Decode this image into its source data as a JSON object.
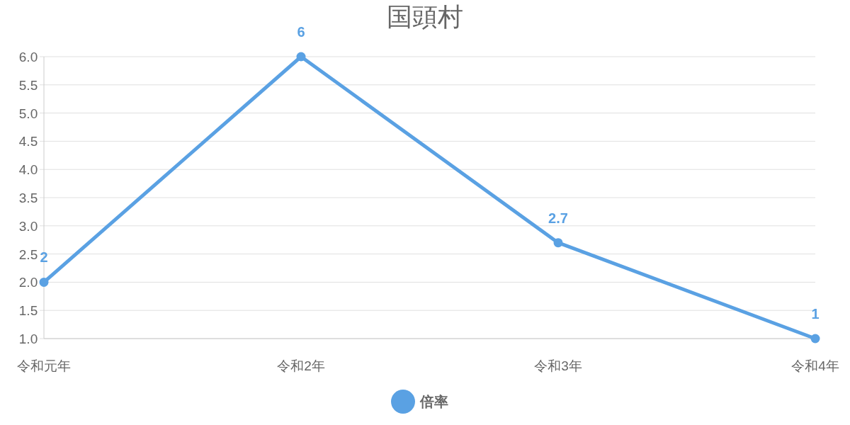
{
  "chart_data": {
    "type": "line",
    "title": "国頭村",
    "categories": [
      "令和元年",
      "令和2年",
      "令和3年",
      "令和4年"
    ],
    "series": [
      {
        "name": "倍率",
        "color": "#5aa1e3",
        "values": [
          2,
          6,
          2.7,
          1
        ]
      }
    ],
    "ylim": [
      1,
      6
    ],
    "yticks": [
      {
        "value": 1,
        "label": "1.0"
      },
      {
        "value": 1.5,
        "label": "1.5"
      },
      {
        "value": 2,
        "label": "2.0"
      },
      {
        "value": 2.5,
        "label": "2.5"
      },
      {
        "value": 3,
        "label": "3.0"
      },
      {
        "value": 3.5,
        "label": "3.5"
      },
      {
        "value": 4,
        "label": "4.0"
      },
      {
        "value": 4.5,
        "label": "4.5"
      },
      {
        "value": 5,
        "label": "5.0"
      },
      {
        "value": 5.5,
        "label": "5.5"
      },
      {
        "value": 6,
        "label": "6.0"
      }
    ],
    "grid": "y",
    "legend": "bottom",
    "marker": "circle",
    "data_labels": true
  }
}
